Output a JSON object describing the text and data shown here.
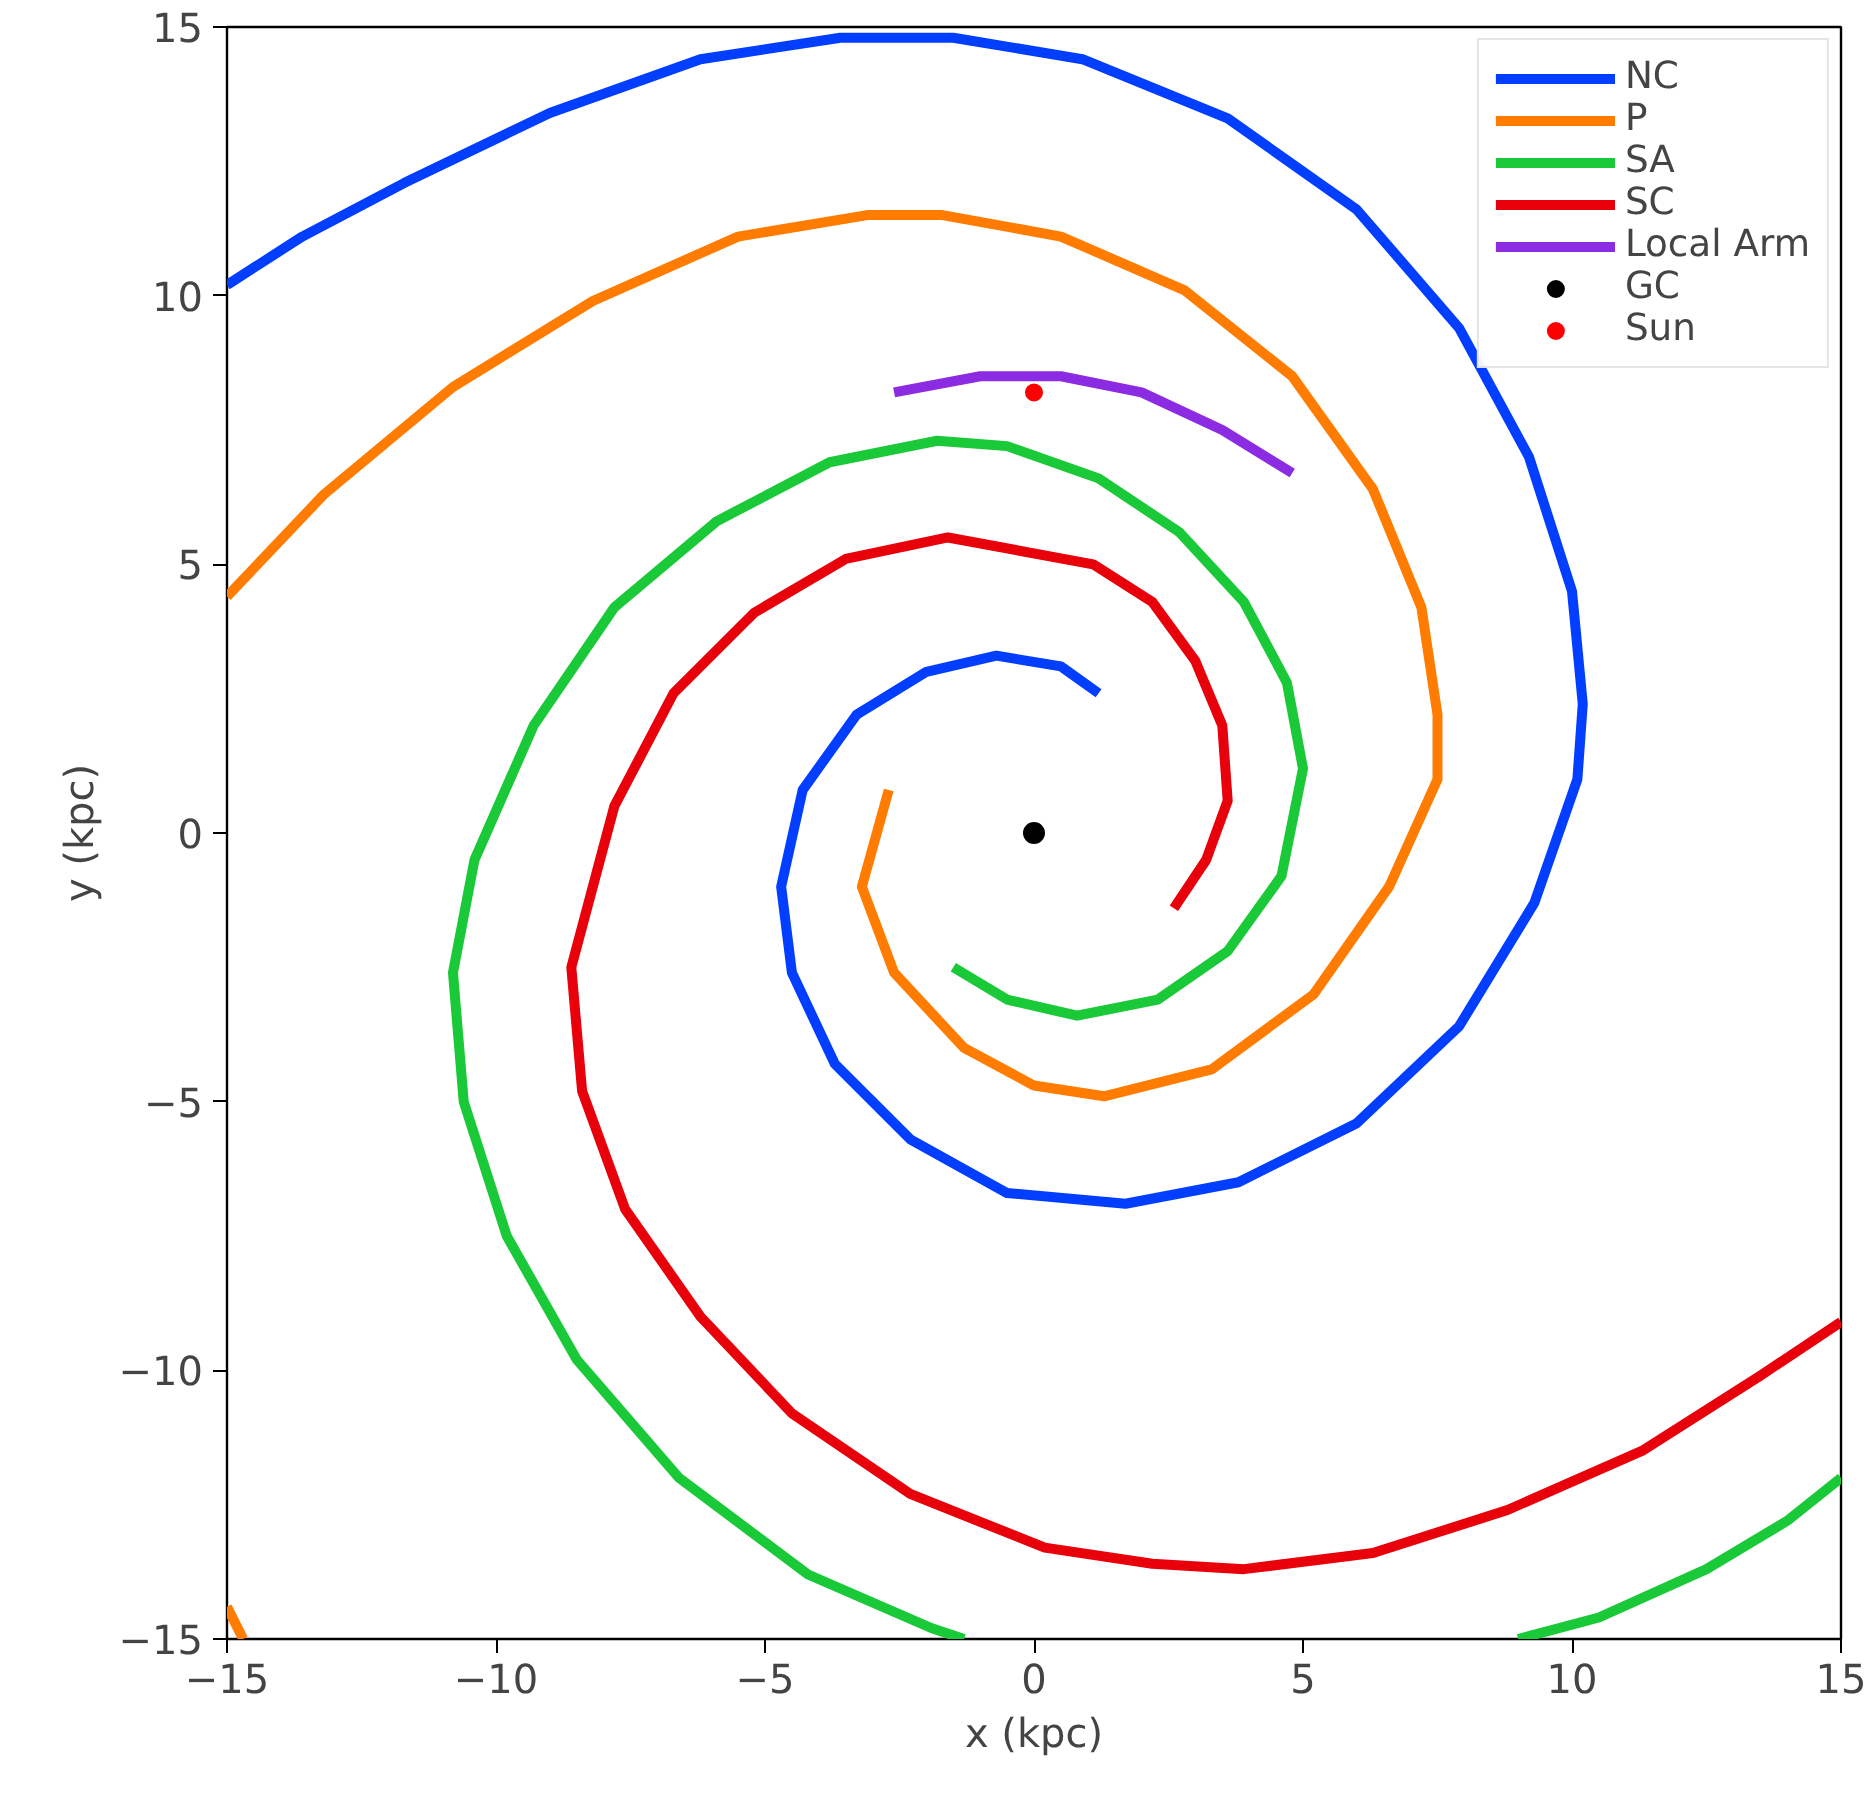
{
  "chart_data": {
    "type": "line",
    "xlabel": "x (kpc)",
    "ylabel": "y (kpc)",
    "xlim": [
      -15,
      15
    ],
    "ylim": [
      -15,
      15
    ],
    "xticks": [
      {
        "value": -15,
        "label": "−15"
      },
      {
        "value": -10,
        "label": "−10"
      },
      {
        "value": -5,
        "label": "−5"
      },
      0,
      5,
      10,
      15
    ],
    "yticks": [
      {
        "value": -15,
        "label": "−15"
      },
      {
        "value": -10,
        "label": "−10"
      },
      {
        "value": -5,
        "label": "−5"
      },
      0,
      5,
      10,
      15
    ],
    "grid": false,
    "legend": "top right",
    "line_style": "solid",
    "series": [
      {
        "name": "NC",
        "color": "#023eff",
        "x": [
          1.2,
          0.5,
          -0.7,
          -2,
          -3.3,
          -4.3,
          -4.7,
          -4.5,
          -3.7,
          -2.3,
          -0.5,
          1.7,
          3.8,
          6.0,
          7.9,
          9.3,
          10.1,
          10.2,
          10.0,
          9.2,
          7.9,
          6.0,
          3.6,
          0.9,
          -1.5,
          -3.6,
          -6.2,
          -9.0,
          -11.7,
          -13.6,
          -15
        ],
        "values": [
          2.6,
          3.1,
          3.3,
          3.0,
          2.2,
          0.8,
          -1.0,
          -2.6,
          -4.3,
          -5.7,
          -6.7,
          -6.9,
          -6.5,
          -5.4,
          -3.6,
          -1.3,
          1.0,
          2.4,
          4.5,
          7.0,
          9.4,
          11.6,
          13.3,
          14.4,
          14.8,
          14.8,
          14.4,
          13.4,
          12.1,
          11.1,
          10.2
        ]
      },
      {
        "name": "P",
        "color": "#ff7c00",
        "x": [
          -2.7,
          -3.2,
          -2.6,
          -1.3,
          0,
          1.3,
          3.3,
          5.2,
          6.6,
          7.5,
          7.5,
          7.2,
          6.3,
          4.8,
          2.8,
          0.5,
          -1.7,
          -3.1,
          -5.5,
          -8.2,
          -10.8,
          -13.2,
          -15,
          null,
          -15,
          -14.7
        ],
        "values": [
          0.8,
          -1.0,
          -2.6,
          -4.0,
          -4.7,
          -4.9,
          -4.4,
          -3.0,
          -1.0,
          1.0,
          2.2,
          4.2,
          6.4,
          8.5,
          10.1,
          11.1,
          11.5,
          11.5,
          11.1,
          9.9,
          8.3,
          6.3,
          4.4,
          null,
          -14.4,
          -15
        ]
      },
      {
        "name": "SA",
        "color": "#1ac938",
        "x": [
          -1.5,
          -0.5,
          0.8,
          2.3,
          3.6,
          4.6,
          5.0,
          4.7,
          3.9,
          2.7,
          1.2,
          -0.5,
          -1.8,
          -3.8,
          -5.9,
          -7.8,
          -9.3,
          -10.4,
          -10.8,
          -10.6,
          -9.8,
          -8.5,
          -6.6,
          -4.2,
          -1.9,
          -1.3,
          null,
          9.0,
          10.5,
          12.5,
          14,
          15
        ],
        "values": [
          -2.5,
          -3.1,
          -3.4,
          -3.1,
          -2.2,
          -0.8,
          1.2,
          2.8,
          4.3,
          5.6,
          6.6,
          7.2,
          7.3,
          6.9,
          5.8,
          4.2,
          2.0,
          -0.5,
          -2.6,
          -5.0,
          -7.5,
          -9.8,
          -12.0,
          -13.8,
          -14.8,
          -15,
          null,
          -15,
          -14.6,
          -13.7,
          -12.8,
          -12.0
        ]
      },
      {
        "name": "SC",
        "color": "#e8000b",
        "x": [
          2.6,
          3.2,
          3.6,
          3.5,
          3.0,
          2.2,
          1.1,
          -1.6,
          -3.5,
          -5.2,
          -6.7,
          -7.8,
          -8.6,
          -8.4,
          -7.6,
          -6.2,
          -4.5,
          -2.3,
          0.2,
          2.2,
          3.9,
          6.3,
          8.8,
          11.3,
          13.5,
          15
        ],
        "values": [
          -1.4,
          -0.5,
          0.6,
          2.0,
          3.2,
          4.3,
          5.0,
          5.5,
          5.1,
          4.1,
          2.6,
          0.5,
          -2.5,
          -4.8,
          -7.0,
          -9.0,
          -10.8,
          -12.3,
          -13.3,
          -13.6,
          -13.7,
          -13.4,
          -12.6,
          -11.5,
          -10.1,
          -9.1
        ]
      },
      {
        "name": "Local Arm",
        "color": "#8b2be2",
        "x": [
          -2.6,
          -1,
          0.5,
          2,
          3.5,
          4.8
        ],
        "values": [
          8.2,
          8.5,
          8.5,
          8.2,
          7.5,
          6.7
        ]
      },
      {
        "name": "GC",
        "type": "scatter",
        "marker": "circle",
        "color": "#000000",
        "x": [
          0
        ],
        "values": [
          0
        ]
      },
      {
        "name": "Sun",
        "type": "scatter",
        "marker": "circle",
        "color": "#ff0000",
        "x": [
          0
        ],
        "values": [
          8.2
        ]
      }
    ]
  }
}
